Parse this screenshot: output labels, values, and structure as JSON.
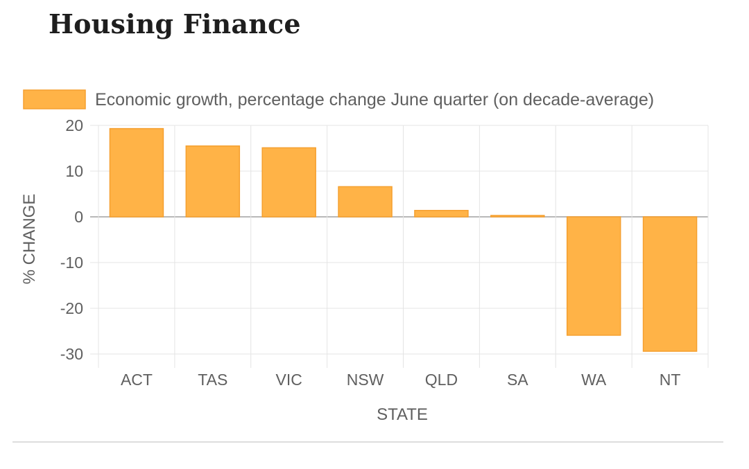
{
  "header": {
    "title": "Housing Finance"
  },
  "chart_data": {
    "type": "bar",
    "categories": [
      "ACT",
      "TAS",
      "VIC",
      "NSW",
      "QLD",
      "SA",
      "WA",
      "NT"
    ],
    "series": [
      {
        "name": "Economic growth, percentage change June quarter (on decade-average)",
        "values": [
          19.3,
          15.5,
          15.1,
          6.6,
          1.4,
          0.3,
          -25.9,
          -29.4
        ]
      }
    ],
    "title": "",
    "xlabel": "STATE",
    "ylabel": "% CHANGE",
    "ylim": [
      -30,
      20
    ],
    "yticks": [
      20,
      10,
      0,
      -10,
      -20,
      -30
    ],
    "grid": true,
    "legend_position": "top-left",
    "bar_color": "#ffb347",
    "bar_border_color": "#f5a030"
  }
}
